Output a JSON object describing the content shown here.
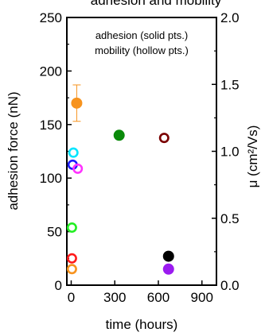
{
  "chart_data": {
    "type": "scatter",
    "title": "adhesion and mobility",
    "xlabel": "time (hours)",
    "ylabel": "adhesion force (nN)",
    "y2label": "μ (cm²/Vs)",
    "xlim": [
      -30,
      1000
    ],
    "ylim": [
      0,
      250
    ],
    "y2lim": [
      0,
      2.0
    ],
    "x_ticks": [
      0,
      300,
      600,
      900
    ],
    "y_ticks": [
      0,
      50,
      100,
      150,
      200,
      250
    ],
    "y2_ticks": [
      0.0,
      0.5,
      1.0,
      1.5,
      2.0
    ],
    "legend": {
      "position": "top",
      "lines": [
        "adhesion (solid pts.)",
        "mobility (hollow pts.)"
      ]
    },
    "adhesion": [
      {
        "x": 38,
        "y": 170,
        "color": "#f7931e",
        "error": 17
      },
      {
        "x": 330,
        "y": 140,
        "color": "#0a8a0a"
      },
      {
        "x": 670,
        "y": 27,
        "color": "#000000"
      },
      {
        "x": 670,
        "y": 15,
        "color": "#9b1bf0"
      }
    ],
    "mobility": [
      {
        "x": 15,
        "y": 0.99,
        "color": "#00e5ff"
      },
      {
        "x": 10,
        "y": 0.9,
        "color": "#1a1aff"
      },
      {
        "x": 45,
        "y": 0.87,
        "color": "#ff33ff"
      },
      {
        "x": 5,
        "y": 0.43,
        "color": "#22ee22"
      },
      {
        "x": 5,
        "y": 0.2,
        "color": "#ff1a1a"
      },
      {
        "x": 5,
        "y": 0.12,
        "color": "#f7931e"
      },
      {
        "x": 640,
        "y": 1.1,
        "color": "#7a0000"
      }
    ]
  }
}
